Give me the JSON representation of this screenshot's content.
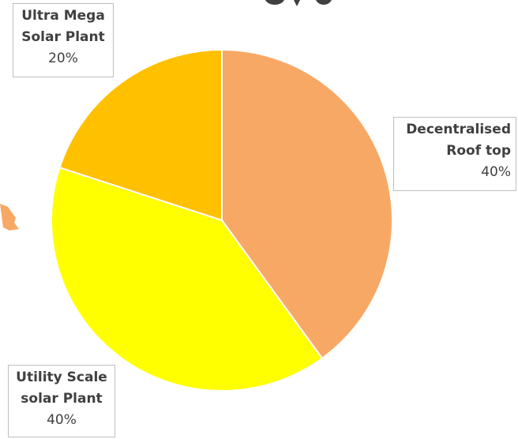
{
  "chart_data": {
    "type": "pie",
    "categories": [
      "Decentralised Roof top",
      "Utility Scale solar Plant",
      "Ultra Mega Solar Plant"
    ],
    "values": [
      40,
      40,
      20
    ],
    "colors": [
      "#f8a865",
      "#ffff00",
      "#ffc000"
    ],
    "labels": [
      {
        "line1": "Decentralised",
        "line2": "Roof top",
        "pct": "40%"
      },
      {
        "line1": "Utility Scale",
        "line2": "solar Plant",
        "pct": "40%"
      },
      {
        "line1": "Ultra Mega",
        "line2": "Solar Plant",
        "pct": "20%"
      }
    ],
    "start_angle_deg": 0,
    "direction": "clockwise",
    "legend": "none"
  },
  "decor": {
    "arrow_color": "#f8a865",
    "border_color": "#bfbfbf",
    "text_color": "#404040"
  }
}
